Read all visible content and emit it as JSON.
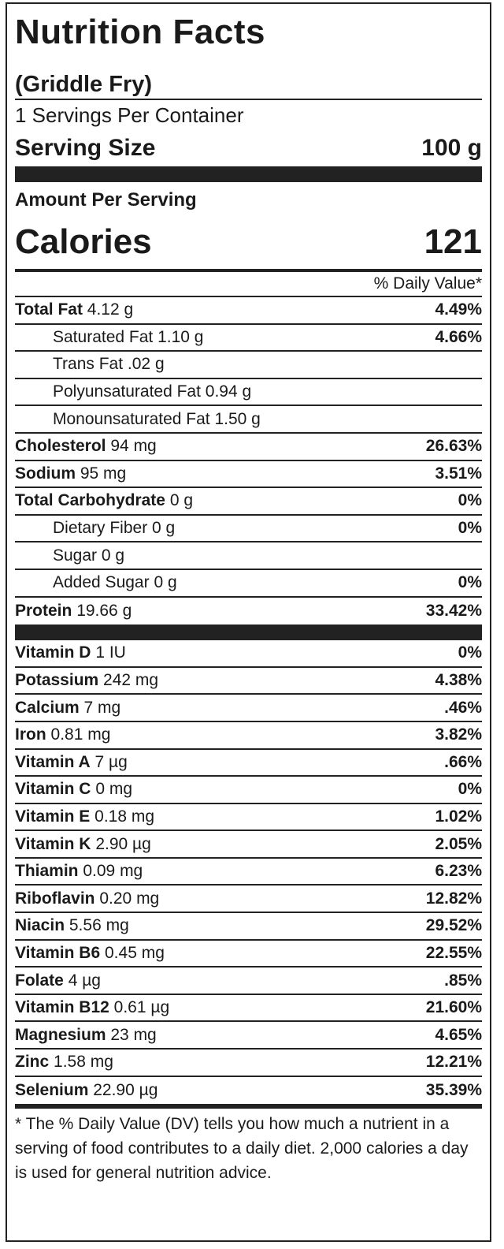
{
  "label": {
    "title": "Nutrition Facts",
    "subtitle": "(Griddle Fry)",
    "servings_per_container": "1 Servings Per Container",
    "serving_size_label": "Serving Size",
    "serving_size_value": "100 g",
    "amount_per_serving": "Amount Per Serving",
    "calories_label": "Calories",
    "calories_value": "121",
    "daily_value_header": "% Daily Value*",
    "macros": [
      {
        "name": "Total Fat",
        "amount": "4.12 g",
        "dv": "4.49%",
        "indent": false
      },
      {
        "name": "Saturated Fat",
        "amount": "1.10 g",
        "dv": "4.66%",
        "indent": true
      },
      {
        "name": "Trans Fat",
        "amount": ".02 g",
        "dv": "",
        "indent": true
      },
      {
        "name": "Polyunsaturated Fat",
        "amount": "0.94 g",
        "dv": "",
        "indent": true
      },
      {
        "name": "Monounsaturated Fat",
        "amount": "1.50 g",
        "dv": "",
        "indent": true
      },
      {
        "name": "Cholesterol",
        "amount": "94 mg",
        "dv": "26.63%",
        "indent": false
      },
      {
        "name": "Sodium",
        "amount": "95 mg",
        "dv": "3.51%",
        "indent": false
      },
      {
        "name": "Total Carbohydrate",
        "amount": "0 g",
        "dv": "0%",
        "indent": false
      },
      {
        "name": "Dietary Fiber",
        "amount": "0 g",
        "dv": "0%",
        "indent": true
      },
      {
        "name": "Sugar",
        "amount": "0 g",
        "dv": "",
        "indent": true
      },
      {
        "name": "Added Sugar",
        "amount": "0 g",
        "dv": "0%",
        "indent": true
      },
      {
        "name": "Protein",
        "amount": "19.66 g",
        "dv": "33.42%",
        "indent": false
      }
    ],
    "micros": [
      {
        "name": "Vitamin D",
        "amount": "1 IU",
        "dv": "0%"
      },
      {
        "name": "Potassium",
        "amount": "242 mg",
        "dv": "4.38%"
      },
      {
        "name": "Calcium",
        "amount": "7 mg",
        "dv": ".46%"
      },
      {
        "name": "Iron",
        "amount": "0.81 mg",
        "dv": "3.82%"
      },
      {
        "name": "Vitamin A",
        "amount": "7 µg",
        "dv": ".66%"
      },
      {
        "name": "Vitamin C",
        "amount": "0 mg",
        "dv": "0%"
      },
      {
        "name": "Vitamin E",
        "amount": "0.18 mg",
        "dv": "1.02%"
      },
      {
        "name": "Vitamin K",
        "amount": "2.90 µg",
        "dv": "2.05%"
      },
      {
        "name": "Thiamin",
        "amount": "0.09 mg",
        "dv": "6.23%"
      },
      {
        "name": "Riboflavin",
        "amount": "0.20 mg",
        "dv": "12.82%"
      },
      {
        "name": "Niacin",
        "amount": "5.56 mg",
        "dv": "29.52%"
      },
      {
        "name": "Vitamin B6",
        "amount": "0.45 mg",
        "dv": "22.55%"
      },
      {
        "name": "Folate",
        "amount": "4 µg",
        "dv": ".85%"
      },
      {
        "name": "Vitamin B12",
        "amount": "0.61 µg",
        "dv": "21.60%"
      },
      {
        "name": "Magnesium",
        "amount": "23 mg",
        "dv": "4.65%"
      },
      {
        "name": "Zinc",
        "amount": "1.58 mg",
        "dv": "12.21%"
      },
      {
        "name": "Selenium",
        "amount": "22.90 µg",
        "dv": "35.39%"
      }
    ],
    "footnote": "* The % Daily Value (DV) tells you how much a nutrient in a serving of food contributes to a daily diet. 2,000 calories a day is used for general nutrition advice."
  }
}
